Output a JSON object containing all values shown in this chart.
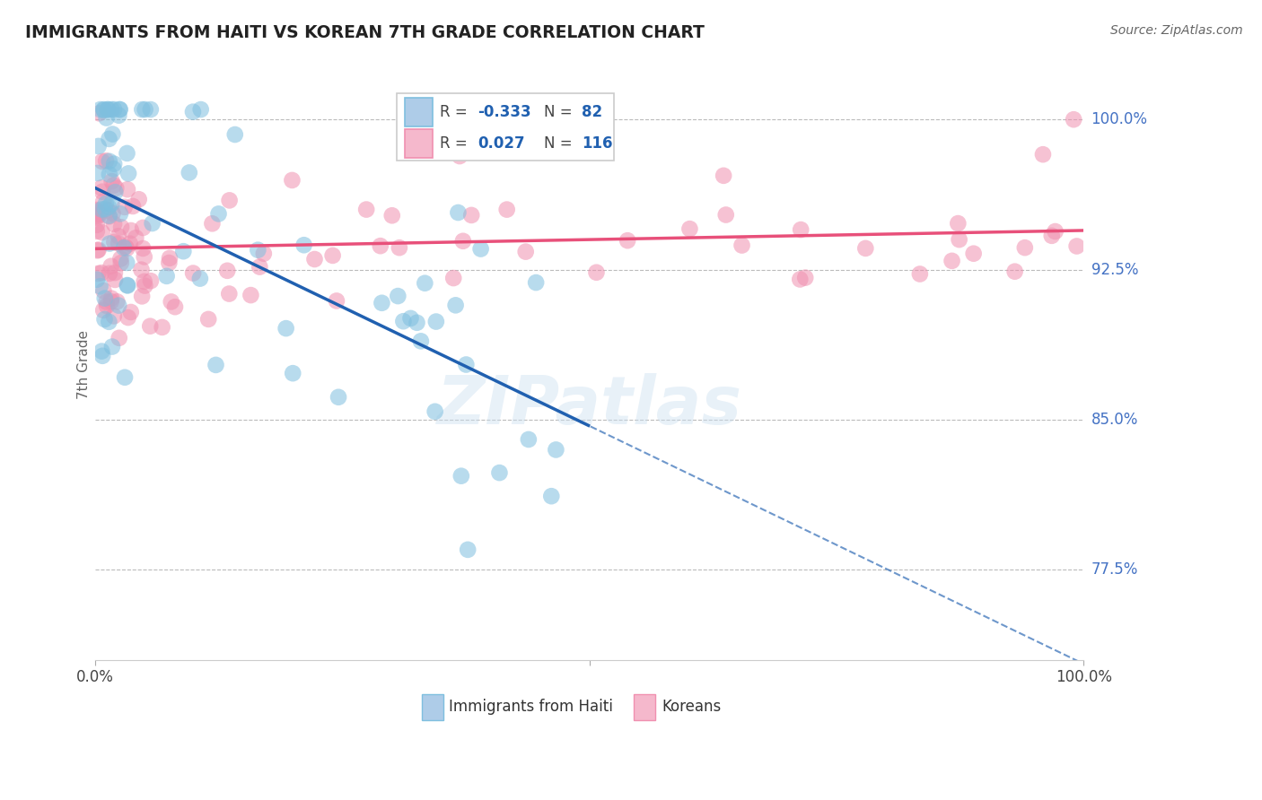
{
  "title": "IMMIGRANTS FROM HAITI VS KOREAN 7TH GRADE CORRELATION CHART",
  "source": "Source: ZipAtlas.com",
  "ylabel": "7th Grade",
  "y_ticks": [
    77.5,
    85.0,
    92.5,
    100.0
  ],
  "y_tick_labels": [
    "77.5%",
    "85.0%",
    "92.5%",
    "100.0%"
  ],
  "x_range": [
    0.0,
    100.0
  ],
  "y_range": [
    73.0,
    102.5
  ],
  "haiti_color": "#7fbfdf",
  "korean_color": "#f090b0",
  "haiti_line_color": "#2060b0",
  "korean_line_color": "#e8507a",
  "watermark": "ZIPatlas",
  "haiti_line_start_x": 0.0,
  "haiti_line_start_y": 97.5,
  "haiti_line_end_x": 50.0,
  "haiti_line_end_y": 83.5,
  "korean_line_start_x": 0.0,
  "korean_line_start_y": 93.5,
  "korean_line_end_x": 100.0,
  "korean_line_end_y": 94.2
}
